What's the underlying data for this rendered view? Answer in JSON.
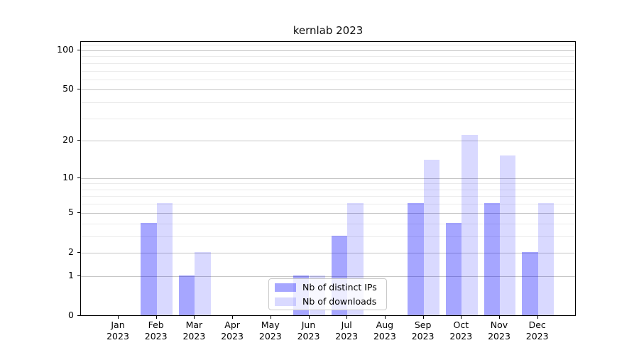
{
  "title": "kernlab 2023",
  "chart_data": {
    "type": "bar",
    "title": "kernlab 2023",
    "xlabel": "",
    "ylabel": "",
    "categories": [
      "Jan",
      "Feb",
      "Mar",
      "Apr",
      "May",
      "Jun",
      "Jul",
      "Aug",
      "Sep",
      "Oct",
      "Nov",
      "Dec"
    ],
    "x_year_label": "2023",
    "series": [
      {
        "name": "Nb of distinct IPs",
        "color": "rgba(0,0,255,0.35)",
        "values": [
          0,
          4,
          1,
          0,
          0,
          1,
          3,
          0,
          6,
          4,
          6,
          2
        ]
      },
      {
        "name": "Nb of downloads",
        "color": "rgba(0,0,255,0.15)",
        "values": [
          0,
          6,
          2,
          0,
          0,
          1,
          6,
          0,
          14,
          22,
          15,
          6
        ]
      }
    ],
    "y_scale": "log1p",
    "y_major_ticks": [
      0,
      1,
      2,
      5,
      10,
      20,
      50,
      100
    ],
    "y_minor_gridlines": [
      3,
      4,
      6,
      7,
      8,
      9,
      30,
      40,
      60,
      70,
      80,
      90,
      110
    ],
    "ylim": [
      0,
      116
    ],
    "grid": true,
    "legend_position": "lower center",
    "colors": {
      "major_grid": "#c6c6c6",
      "minor_grid": "#ebebeb",
      "spine": "#000000",
      "background": "#ffffff"
    }
  }
}
